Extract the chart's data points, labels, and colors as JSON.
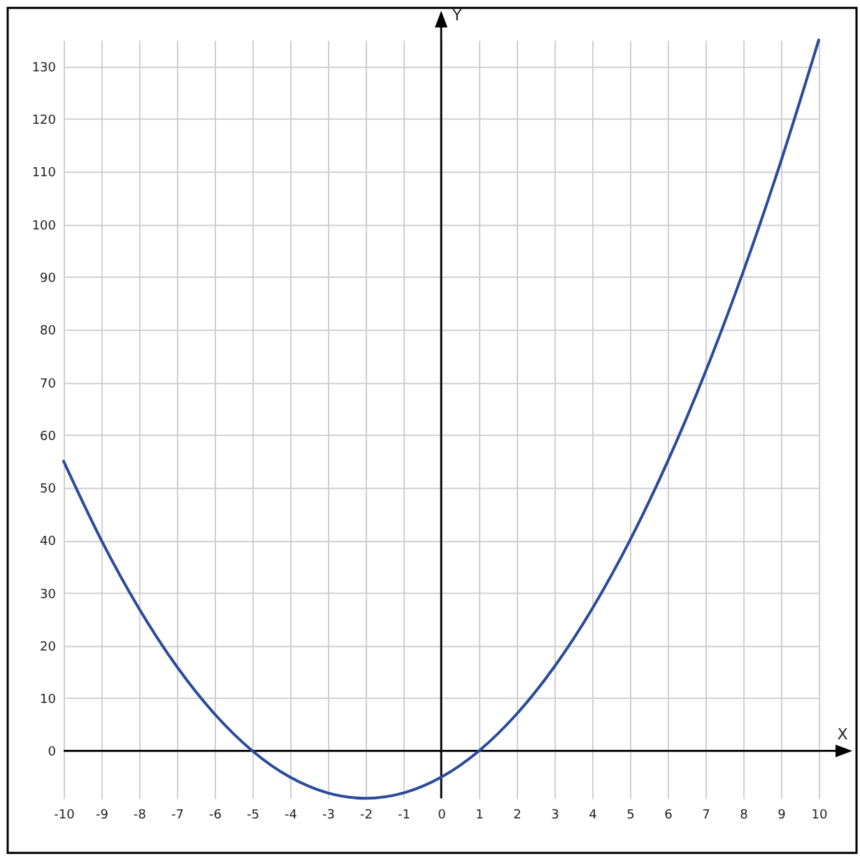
{
  "chart_data": {
    "type": "line",
    "xlabel": "X",
    "ylabel": "Y",
    "x": [
      -10,
      -9,
      -8,
      -7,
      -6,
      -5,
      -4,
      -3,
      -2,
      -1,
      0,
      1,
      2,
      3,
      4,
      5,
      6,
      7,
      8,
      9,
      10
    ],
    "series": [
      {
        "color": "#2a4b9b",
        "values": [
          55,
          40,
          27,
          16,
          7,
          0,
          -5,
          -8,
          -9,
          -8,
          -5,
          0,
          7,
          16,
          27,
          40,
          55,
          72,
          91,
          112,
          135
        ]
      }
    ],
    "xlim": [
      -10,
      10
    ],
    "ylim": [
      -9,
      135
    ],
    "xticks": [
      -10,
      -9,
      -8,
      -7,
      -6,
      -5,
      -4,
      -3,
      -2,
      -1,
      0,
      1,
      2,
      3,
      4,
      5,
      6,
      7,
      8,
      9,
      10
    ],
    "yticks": [
      0,
      10,
      20,
      30,
      40,
      50,
      60,
      70,
      80,
      90,
      100,
      110,
      120,
      130
    ],
    "grid": true
  }
}
